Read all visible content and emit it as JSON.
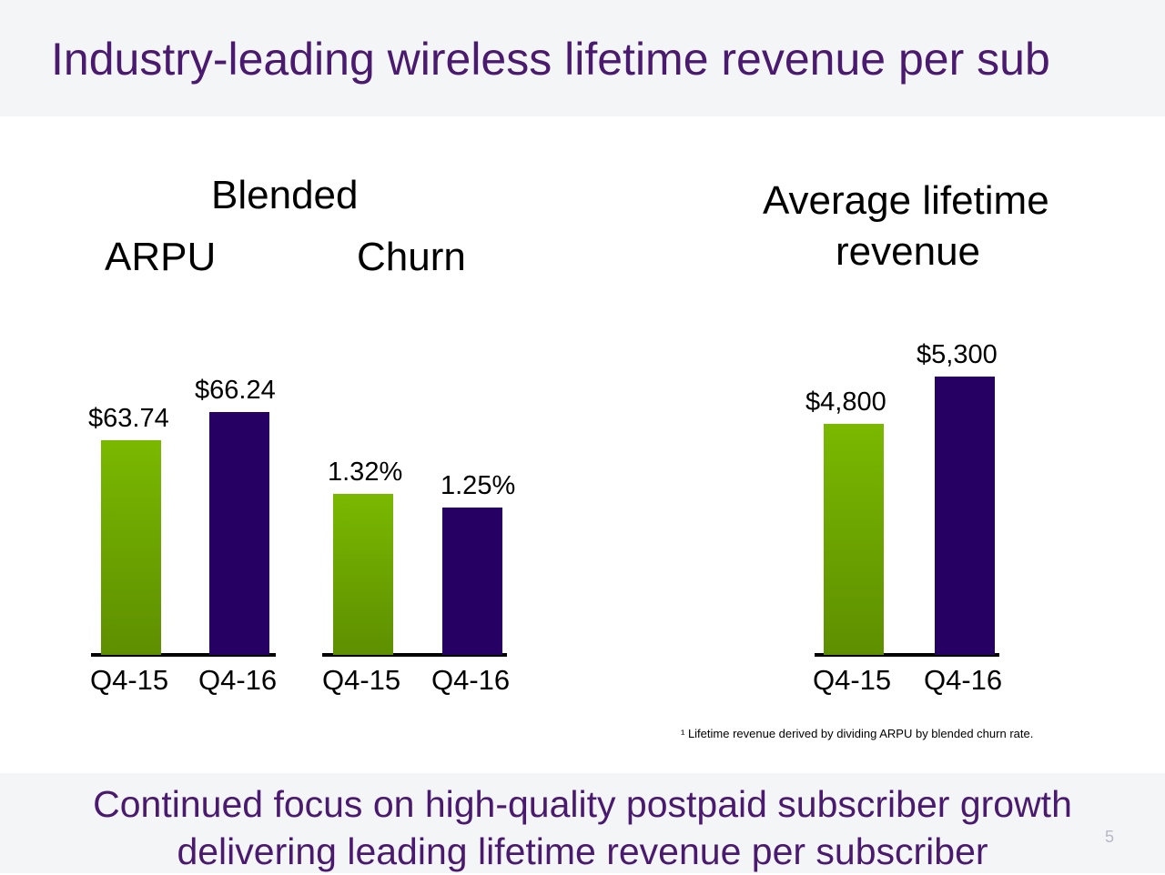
{
  "title": "Industry-leading wireless lifetime revenue per sub",
  "headings": {
    "blended": "Blended",
    "arpu": "ARPU",
    "churn": "Churn",
    "lifetime_line1": "Average lifetime",
    "lifetime_line2": "revenue"
  },
  "colors": {
    "green": "#7ab800",
    "purple": "#260063",
    "title": "#4a1a6e"
  },
  "chart_data": [
    {
      "type": "bar",
      "title": "Blended ARPU",
      "categories": [
        "Q4-15",
        "Q4-16"
      ],
      "values": [
        63.74,
        66.24
      ],
      "labels": [
        "$63.74",
        "$66.24"
      ]
    },
    {
      "type": "bar",
      "title": "Blended Churn",
      "categories": [
        "Q4-15",
        "Q4-16"
      ],
      "values": [
        1.32,
        1.25
      ],
      "labels": [
        "1.32%",
        "1.25%"
      ]
    },
    {
      "type": "bar",
      "title": "Average lifetime revenue",
      "categories": [
        "Q4-15",
        "Q4-16"
      ],
      "values": [
        4800,
        5300
      ],
      "labels": [
        "$4,800",
        "$5,300"
      ]
    }
  ],
  "footnote": "¹ Lifetime revenue derived by dividing ARPU by blended churn rate.",
  "footer": {
    "line1": "Continued focus on high-quality postpaid subscriber growth",
    "line2": "delivering leading lifetime revenue per subscriber"
  },
  "page_number": "5"
}
